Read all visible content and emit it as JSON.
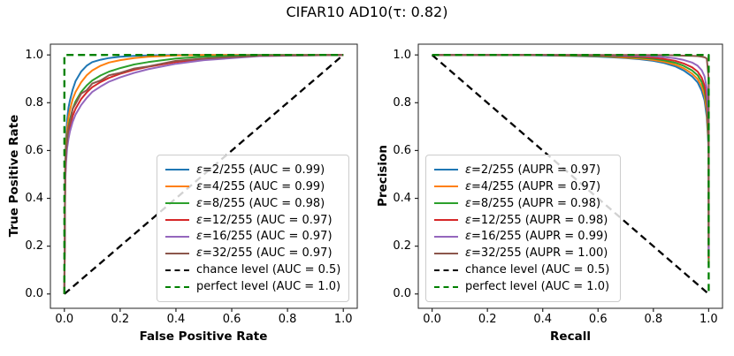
{
  "title": "CIFAR10 AD10(τ: 0.82)",
  "chart_data": [
    {
      "type": "line",
      "title": "",
      "xlabel": "False Positive Rate",
      "ylabel": "True Positive Rate",
      "xlim": [
        -0.05,
        1.05
      ],
      "ylim": [
        -0.06,
        1.045
      ],
      "grid": false,
      "legend_position": "lower right",
      "xticks": {
        "values": [
          0,
          0.2,
          0.4,
          0.6,
          0.8,
          1.0
        ],
        "labels": [
          "0.0",
          "0.2",
          "0.4",
          "0.6",
          "0.8",
          "1.0"
        ]
      },
      "yticks": {
        "values": [
          0,
          0.2,
          0.4,
          0.6,
          0.8,
          1.0
        ],
        "labels": [
          "0.0",
          "0.2",
          "0.4",
          "0.6",
          "0.8",
          "1.0"
        ]
      },
      "series": [
        {
          "id": "eps-2-255",
          "name": "ε=2/255 (AUC = 0.99)",
          "color": "#1f77b4",
          "dash": false,
          "x": [
            0,
            0.003,
            0.006,
            0.01,
            0.015,
            0.02,
            0.03,
            0.04,
            0.06,
            0.08,
            0.1,
            0.13,
            0.16,
            0.2,
            0.25,
            0.3,
            0.4,
            0.5,
            0.7,
            1.0
          ],
          "y": [
            0,
            0.55,
            0.66,
            0.73,
            0.78,
            0.81,
            0.855,
            0.89,
            0.93,
            0.955,
            0.97,
            0.98,
            0.987,
            0.992,
            0.996,
            0.998,
            1,
            1,
            1,
            1
          ]
        },
        {
          "id": "eps-4-255",
          "name": "ε=4/255 (AUC = 0.99)",
          "color": "#ff7f0e",
          "dash": false,
          "x": [
            0,
            0.003,
            0.006,
            0.01,
            0.015,
            0.02,
            0.03,
            0.04,
            0.06,
            0.08,
            0.1,
            0.13,
            0.16,
            0.2,
            0.25,
            0.3,
            0.4,
            0.5,
            0.7,
            1.0
          ],
          "y": [
            0,
            0.52,
            0.62,
            0.69,
            0.74,
            0.77,
            0.815,
            0.845,
            0.885,
            0.915,
            0.935,
            0.955,
            0.968,
            0.978,
            0.987,
            0.992,
            0.998,
            1,
            1,
            1
          ]
        },
        {
          "id": "eps-8-255",
          "name": "ε=8/255 (AUC = 0.98)",
          "color": "#2ca02c",
          "dash": false,
          "x": [
            0,
            0.003,
            0.006,
            0.01,
            0.015,
            0.02,
            0.03,
            0.04,
            0.06,
            0.08,
            0.1,
            0.13,
            0.16,
            0.2,
            0.25,
            0.3,
            0.4,
            0.5,
            0.7,
            1.0
          ],
          "y": [
            0,
            0.5,
            0.6,
            0.66,
            0.7,
            0.73,
            0.775,
            0.805,
            0.845,
            0.872,
            0.893,
            0.914,
            0.93,
            0.945,
            0.96,
            0.97,
            0.985,
            0.993,
            1,
            1
          ]
        },
        {
          "id": "eps-12-255",
          "name": "ε=12/255 (AUC = 0.97)",
          "color": "#d62728",
          "dash": false,
          "x": [
            0,
            0.003,
            0.006,
            0.01,
            0.015,
            0.02,
            0.03,
            0.04,
            0.06,
            0.08,
            0.1,
            0.13,
            0.16,
            0.2,
            0.25,
            0.3,
            0.4,
            0.5,
            0.7,
            1.0
          ],
          "y": [
            0,
            0.48,
            0.57,
            0.63,
            0.67,
            0.7,
            0.745,
            0.775,
            0.815,
            0.843,
            0.865,
            0.887,
            0.904,
            0.921,
            0.938,
            0.95,
            0.97,
            0.982,
            0.996,
            1
          ]
        },
        {
          "id": "eps-16-255",
          "name": "ε=16/255 (AUC = 0.97)",
          "color": "#9467bd",
          "dash": false,
          "x": [
            0,
            0.003,
            0.006,
            0.01,
            0.015,
            0.02,
            0.03,
            0.04,
            0.06,
            0.08,
            0.1,
            0.13,
            0.16,
            0.2,
            0.25,
            0.3,
            0.4,
            0.5,
            0.7,
            1.0
          ],
          "y": [
            0,
            0.46,
            0.55,
            0.61,
            0.65,
            0.68,
            0.72,
            0.75,
            0.79,
            0.82,
            0.845,
            0.868,
            0.888,
            0.906,
            0.925,
            0.94,
            0.963,
            0.978,
            0.995,
            1
          ]
        },
        {
          "id": "eps-32-255",
          "name": "ε=32/255 (AUC = 0.97)",
          "color": "#8c564b",
          "dash": false,
          "x": [
            0,
            0.003,
            0.006,
            0.01,
            0.015,
            0.02,
            0.03,
            0.04,
            0.06,
            0.08,
            0.1,
            0.13,
            0.16,
            0.2,
            0.25,
            0.3,
            0.4,
            0.5,
            0.7,
            1.0
          ],
          "y": [
            0,
            0.49,
            0.6,
            0.64,
            0.7,
            0.715,
            0.775,
            0.795,
            0.838,
            0.852,
            0.88,
            0.893,
            0.915,
            0.925,
            0.943,
            0.952,
            0.975,
            0.985,
            0.997,
            1
          ]
        },
        {
          "id": "chance-level",
          "name": "chance level (AUC = 0.5)",
          "color": "#000000",
          "dash": true,
          "x": [
            0,
            1
          ],
          "y": [
            0,
            1
          ]
        },
        {
          "id": "perfect-level",
          "name": "perfect level (AUC = 1.0)",
          "color": "#008000",
          "dash": true,
          "x": [
            0,
            0,
            1
          ],
          "y": [
            0,
            1,
            1
          ]
        }
      ]
    },
    {
      "type": "line",
      "title": "",
      "xlabel": "Recall",
      "ylabel": "Precision",
      "xlim": [
        -0.05,
        1.05
      ],
      "ylim": [
        -0.06,
        1.045
      ],
      "grid": false,
      "legend_position": "lower left",
      "xticks": {
        "values": [
          0,
          0.2,
          0.4,
          0.6,
          0.8,
          1.0
        ],
        "labels": [
          "0.0",
          "0.2",
          "0.4",
          "0.6",
          "0.8",
          "1.0"
        ]
      },
      "yticks": {
        "values": [
          0,
          0.2,
          0.4,
          0.6,
          0.8,
          1.0
        ],
        "labels": [
          "0.0",
          "0.2",
          "0.4",
          "0.6",
          "0.8",
          "1.0"
        ]
      },
      "series": [
        {
          "id": "eps-2-255",
          "name": "ε=2/255 (AUPR = 0.97)",
          "color": "#1f77b4",
          "dash": false,
          "x": [
            0,
            0.1,
            0.2,
            0.3,
            0.4,
            0.5,
            0.6,
            0.65,
            0.7,
            0.75,
            0.8,
            0.84,
            0.88,
            0.91,
            0.94,
            0.96,
            0.975,
            0.985,
            0.993,
            1.0,
            1.0
          ],
          "y": [
            1,
            1,
            1,
            1,
            0.998,
            0.996,
            0.993,
            0.99,
            0.987,
            0.982,
            0.975,
            0.966,
            0.952,
            0.935,
            0.91,
            0.885,
            0.85,
            0.81,
            0.74,
            0.6,
            0.12
          ]
        },
        {
          "id": "eps-4-255",
          "name": "ε=4/255 (AUPR = 0.97)",
          "color": "#ff7f0e",
          "dash": false,
          "x": [
            0,
            0.1,
            0.2,
            0.3,
            0.4,
            0.5,
            0.6,
            0.65,
            0.7,
            0.75,
            0.8,
            0.84,
            0.88,
            0.91,
            0.94,
            0.96,
            0.975,
            0.985,
            0.993,
            1.0,
            1.0
          ],
          "y": [
            1,
            1,
            1,
            1,
            0.999,
            0.997,
            0.995,
            0.992,
            0.989,
            0.985,
            0.979,
            0.971,
            0.959,
            0.944,
            0.922,
            0.899,
            0.868,
            0.83,
            0.765,
            0.62,
            0.13
          ]
        },
        {
          "id": "eps-8-255",
          "name": "ε=8/255 (AUPR = 0.98)",
          "color": "#2ca02c",
          "dash": false,
          "x": [
            0,
            0.1,
            0.2,
            0.3,
            0.4,
            0.5,
            0.6,
            0.65,
            0.7,
            0.75,
            0.8,
            0.84,
            0.88,
            0.91,
            0.94,
            0.96,
            0.975,
            0.985,
            0.993,
            1.0,
            1.0
          ],
          "y": [
            1,
            1,
            1,
            1,
            1,
            0.998,
            0.996,
            0.994,
            0.992,
            0.989,
            0.984,
            0.977,
            0.967,
            0.954,
            0.935,
            0.915,
            0.887,
            0.852,
            0.79,
            0.64,
            0.14
          ]
        },
        {
          "id": "eps-12-255",
          "name": "ε=12/255 (AUPR = 0.98)",
          "color": "#d62728",
          "dash": false,
          "x": [
            0,
            0.1,
            0.2,
            0.3,
            0.4,
            0.5,
            0.6,
            0.65,
            0.7,
            0.75,
            0.8,
            0.84,
            0.88,
            0.91,
            0.94,
            0.96,
            0.975,
            0.985,
            0.993,
            1.0,
            1.0
          ],
          "y": [
            1,
            1,
            1,
            1,
            1,
            0.999,
            0.998,
            0.996,
            0.994,
            0.992,
            0.988,
            0.983,
            0.975,
            0.964,
            0.948,
            0.93,
            0.905,
            0.872,
            0.815,
            0.66,
            0.15
          ]
        },
        {
          "id": "eps-16-255",
          "name": "ε=16/255 (AUPR = 0.99)",
          "color": "#9467bd",
          "dash": false,
          "x": [
            0,
            0.1,
            0.2,
            0.3,
            0.4,
            0.5,
            0.6,
            0.65,
            0.7,
            0.75,
            0.8,
            0.84,
            0.88,
            0.91,
            0.94,
            0.96,
            0.975,
            0.985,
            0.993,
            1.0,
            1.0
          ],
          "y": [
            1,
            1,
            1,
            1,
            1,
            1,
            0.999,
            0.998,
            0.997,
            0.996,
            0.994,
            0.991,
            0.986,
            0.979,
            0.968,
            0.955,
            0.936,
            0.91,
            0.86,
            0.7,
            0.16
          ]
        },
        {
          "id": "eps-32-255",
          "name": "ε=32/255 (AUPR = 1.00)",
          "color": "#8c564b",
          "dash": false,
          "x": [
            0,
            0.1,
            0.2,
            0.3,
            0.4,
            0.5,
            0.6,
            0.65,
            0.7,
            0.75,
            0.8,
            0.84,
            0.88,
            0.91,
            0.94,
            0.96,
            0.975,
            0.985,
            0.993,
            1.0,
            1.0
          ],
          "y": [
            1,
            1,
            1,
            1,
            1,
            1,
            1,
            1,
            1,
            1,
            0.999,
            0.999,
            0.998,
            0.997,
            0.996,
            0.995,
            0.993,
            0.99,
            0.985,
            0.9,
            0.2
          ]
        },
        {
          "id": "chance-level",
          "name": "chance level (AUC = 0.5)",
          "color": "#000000",
          "dash": true,
          "x": [
            0,
            1
          ],
          "y": [
            1,
            0
          ]
        },
        {
          "id": "perfect-level",
          "name": "perfect level (AUC = 1.0)",
          "color": "#008000",
          "dash": true,
          "x": [
            0,
            1,
            1
          ],
          "y": [
            1,
            1,
            0
          ]
        }
      ]
    }
  ]
}
